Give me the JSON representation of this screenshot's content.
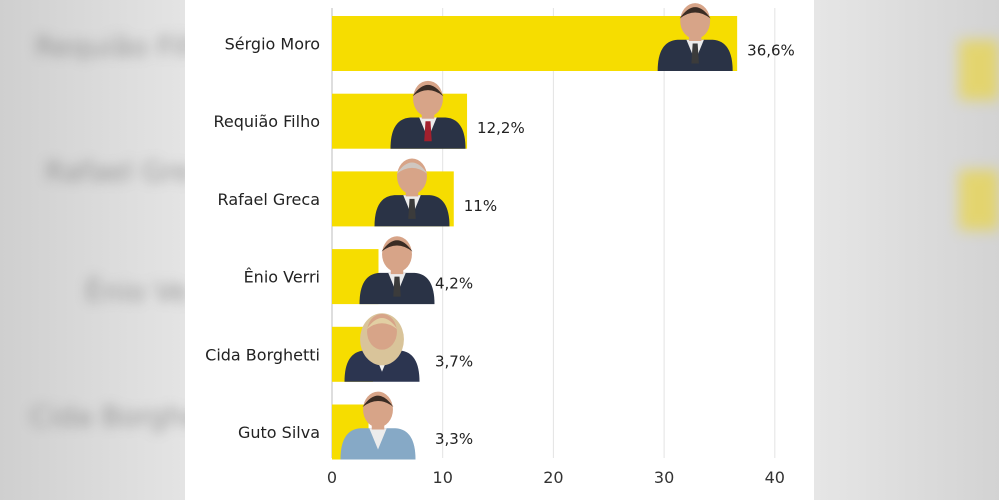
{
  "chart_data": {
    "type": "bar",
    "orientation": "horizontal",
    "title": "",
    "xlabel": "",
    "ylabel": "",
    "categories": [
      "Sérgio Moro",
      "Requião Filho",
      "Rafael Greca",
      "Ênio Verri",
      "Cida Borghetti",
      "Guto Silva"
    ],
    "values": [
      36.6,
      12.2,
      11,
      4.2,
      3.7,
      3.3
    ],
    "value_labels": [
      "36,6%",
      "12,2%",
      "11%",
      "4,2%",
      "3,7%",
      "3,3%"
    ],
    "xlim": [
      0,
      40
    ],
    "x_ticks": [
      "0",
      "10",
      "20",
      "30",
      "40"
    ],
    "grid": "vertical",
    "legend": "none",
    "bar_color": "#f6dd00",
    "bar_images": [
      "candidate-photo"
    ]
  },
  "colors": {
    "bar": "#f6dd00",
    "grid": "#e3e3e3",
    "suit_dark": "#2a3346",
    "skin": "#d7a488",
    "hair_dark": "#3a2c24",
    "background_side": "#d9d9d9"
  }
}
